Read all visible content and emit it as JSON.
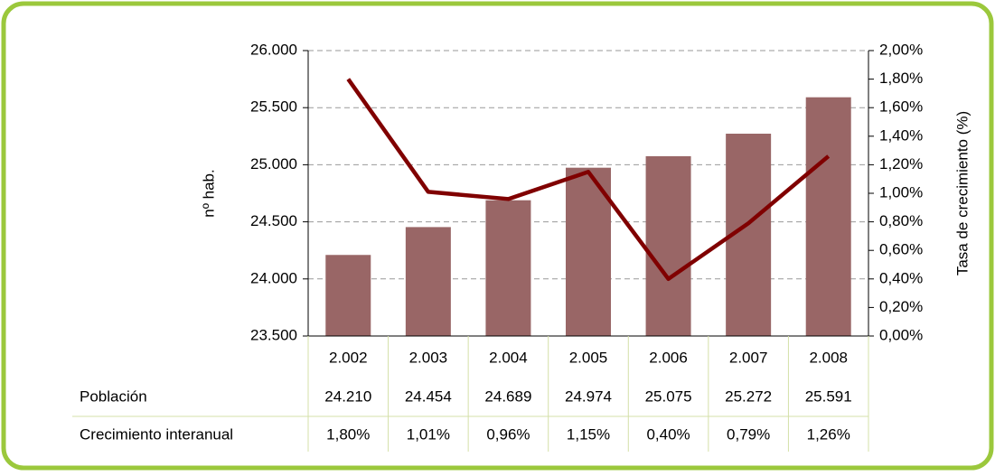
{
  "chart_data": {
    "type": "bar-line",
    "categories": [
      "2.002",
      "2.003",
      "2.004",
      "2.005",
      "2.006",
      "2.007",
      "2.008"
    ],
    "series": [
      {
        "name": "Población",
        "type": "bar",
        "color": "#996666",
        "values": [
          24210,
          24454,
          24689,
          24974,
          25075,
          25272,
          25591
        ],
        "value_labels": [
          "24.210",
          "24.454",
          "24.689",
          "24.974",
          "25.075",
          "25.272",
          "25.591"
        ]
      },
      {
        "name": "Crecimiento interanual",
        "type": "line",
        "axis": "y2",
        "color": "#800000",
        "values": [
          1.8,
          1.01,
          0.96,
          1.15,
          0.4,
          0.79,
          1.26
        ],
        "value_labels": [
          "1,80%",
          "1,01%",
          "0,96%",
          "1,15%",
          "0,40%",
          "0,79%",
          "1,26%"
        ]
      }
    ],
    "ylabel": "nº hab.",
    "y2label": "Tasa de crecimiento (%)",
    "ylim": [
      23500,
      26000
    ],
    "yticks": [
      {
        "value": 23500,
        "label": "23.500"
      },
      {
        "value": 24000,
        "label": "24.000"
      },
      {
        "value": 24500,
        "label": "24.500"
      },
      {
        "value": 25000,
        "label": "25.000"
      },
      {
        "value": 25500,
        "label": "25.500"
      },
      {
        "value": 26000,
        "label": "26.000"
      }
    ],
    "y2lim": [
      0,
      2
    ],
    "y2ticks": [
      {
        "value": 0,
        "label": "0,00%"
      },
      {
        "value": 0.2,
        "label": "0,20%"
      },
      {
        "value": 0.4,
        "label": "0,40%"
      },
      {
        "value": 0.6,
        "label": "0,60%"
      },
      {
        "value": 0.8,
        "label": "0,80%"
      },
      {
        "value": 1.0,
        "label": "1,00%"
      },
      {
        "value": 1.2,
        "label": "1,20%"
      },
      {
        "value": 1.4,
        "label": "1,40%"
      },
      {
        "value": 1.6,
        "label": "1,60%"
      },
      {
        "value": 1.8,
        "label": "1,80%"
      },
      {
        "value": 2.0,
        "label": "2,00%"
      }
    ],
    "grid": true
  }
}
